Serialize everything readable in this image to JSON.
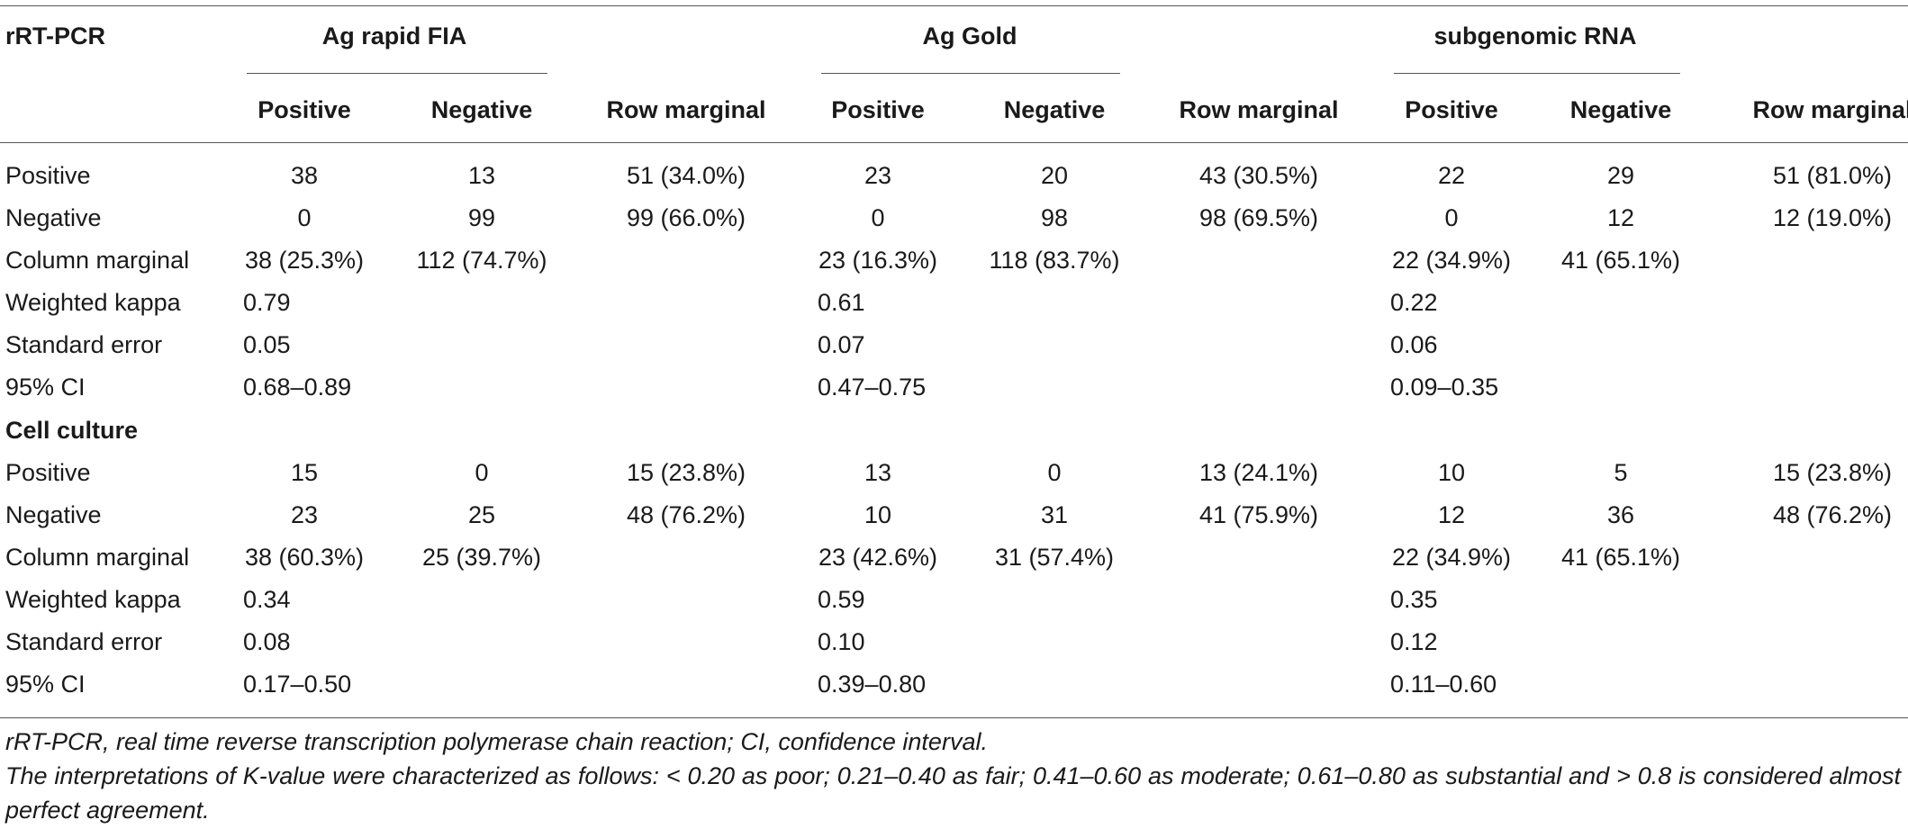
{
  "corner_label": "rRT-PCR",
  "groups": [
    "Ag rapid FIA",
    "Ag Gold",
    "subgenomic RNA"
  ],
  "sub_headers": [
    "Positive",
    "Negative",
    "Row marginal",
    "Positive",
    "Negative",
    "Row marginal",
    "Positive",
    "Negative",
    "Row marginal"
  ],
  "section1_rows": [
    {
      "label": "Positive",
      "cells": [
        "38",
        "13",
        "51 (34.0%)",
        "23",
        "20",
        "43 (30.5%)",
        "22",
        "29",
        "51 (81.0%)"
      ]
    },
    {
      "label": "Negative",
      "cells": [
        "0",
        "99",
        "99 (66.0%)",
        "0",
        "98",
        "98 (69.5%)",
        "0",
        "12",
        "12 (19.0%)"
      ]
    },
    {
      "label": "Column marginal",
      "cells": [
        "38 (25.3%)",
        "112 (74.7%)",
        "",
        "23 (16.3%)",
        "118 (83.7%)",
        "",
        "22 (34.9%)",
        "41 (65.1%)",
        ""
      ]
    },
    {
      "label": "Weighted kappa",
      "cells": [
        "0.79",
        "",
        "",
        "0.61",
        "",
        "",
        "0.22",
        "",
        ""
      ]
    },
    {
      "label": "Standard error",
      "cells": [
        "0.05",
        "",
        "",
        "0.07",
        "",
        "",
        "0.06",
        "",
        ""
      ]
    },
    {
      "label": "95% CI",
      "cells": [
        "0.68–0.89",
        "",
        "",
        "0.47–0.75",
        "",
        "",
        "0.09–0.35",
        "",
        ""
      ]
    }
  ],
  "section2_label": "Cell culture",
  "section2_rows": [
    {
      "label": "Positive",
      "cells": [
        "15",
        "0",
        "15 (23.8%)",
        "13",
        "0",
        "13 (24.1%)",
        "10",
        "5",
        "15 (23.8%)"
      ]
    },
    {
      "label": "Negative",
      "cells": [
        "23",
        "25",
        "48 (76.2%)",
        "10",
        "31",
        "41 (75.9%)",
        "12",
        "36",
        "48 (76.2%)"
      ]
    },
    {
      "label": "Column marginal",
      "cells": [
        "38 (60.3%)",
        "25 (39.7%)",
        "",
        "23 (42.6%)",
        "31 (57.4%)",
        "",
        "22 (34.9%)",
        "41 (65.1%)",
        ""
      ]
    },
    {
      "label": "Weighted kappa",
      "cells": [
        "0.34",
        "",
        "",
        "0.59",
        "",
        "",
        "0.35",
        "",
        ""
      ]
    },
    {
      "label": "Standard error",
      "cells": [
        "0.08",
        "",
        "",
        "0.10",
        "",
        "",
        "0.12",
        "",
        ""
      ]
    },
    {
      "label": "95% CI",
      "cells": [
        "0.17–0.50",
        "",
        "",
        "0.39–0.80",
        "",
        "",
        "0.11–0.60",
        "",
        ""
      ]
    }
  ],
  "footnotes": [
    "rRT-PCR, real time reverse transcription polymerase chain reaction; CI, confidence interval.",
    "The interpretations of K-value were characterized as follows: < 0.20 as poor; 0.21–0.40 as fair; 0.41–0.60 as moderate; 0.61–0.80 as substantial and > 0.8 is considered almost perfect agreement."
  ]
}
